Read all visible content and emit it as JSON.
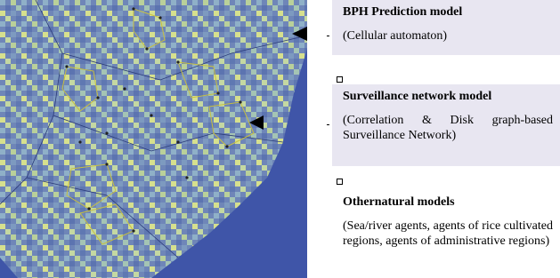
{
  "boxes": [
    {
      "title": "BPH Prediction model",
      "description": "(Cellular automaton)"
    },
    {
      "title": "Surveillance network model",
      "description": "(Correlation & Disk graph-based Surveillance Network)"
    },
    {
      "title": "Othernatural models",
      "description": "(Sea/river agents, agents of rice cultivated regions, agents of administrative regions)"
    }
  ]
}
